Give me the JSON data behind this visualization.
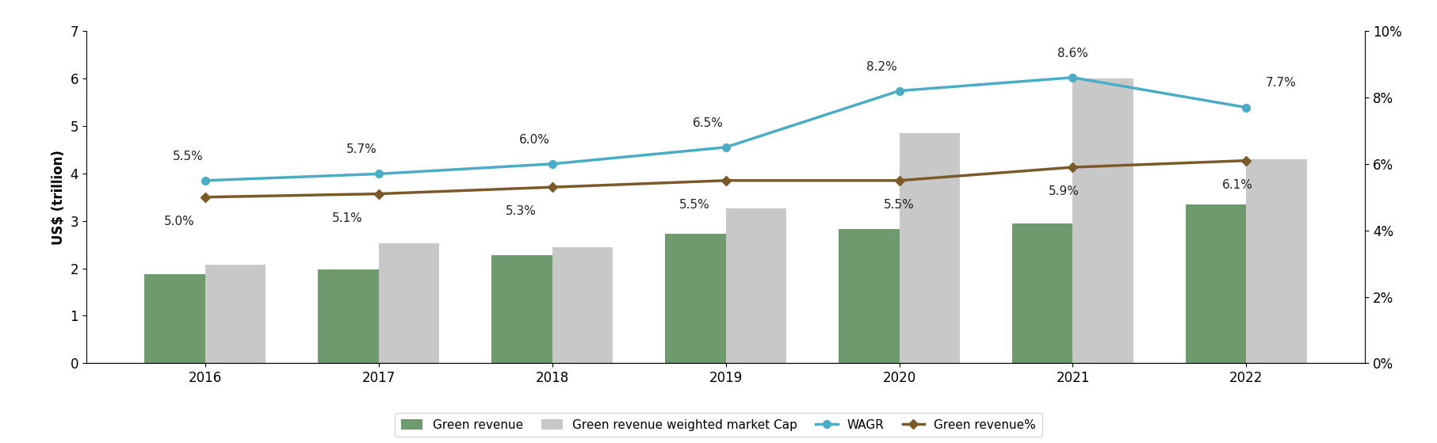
{
  "years": [
    2016,
    2017,
    2018,
    2019,
    2020,
    2021,
    2022
  ],
  "green_revenue": [
    1.87,
    1.97,
    2.28,
    2.72,
    2.82,
    2.95,
    3.35
  ],
  "green_rev_weighted_mktcap": [
    2.07,
    2.52,
    2.45,
    3.27,
    4.85,
    6.0,
    4.3
  ],
  "wagr_pct": [
    5.5,
    5.7,
    6.0,
    6.5,
    8.2,
    8.6,
    7.7
  ],
  "green_pct": [
    5.0,
    5.1,
    5.3,
    5.5,
    5.5,
    5.9,
    6.1
  ],
  "wagr_labels": [
    "5.5%",
    "5.7%",
    "6.0%",
    "6.5%",
    "8.2%",
    "8.6%",
    "7.7%"
  ],
  "green_rev_pct_labels": [
    "5.0%",
    "5.1%",
    "5.3%",
    "5.5%",
    "5.5%",
    "5.9%",
    "6.1%"
  ],
  "green_revenue_color": "#6e9a6e",
  "mktcap_color": "#c8c8c8",
  "wagr_color": "#4bacc6",
  "green_pct_color": "#7b5a2a",
  "ylabel_left": "US$ (trillion)",
  "ylim_left": [
    0,
    7
  ],
  "ylim_right": [
    0,
    10
  ],
  "yticks_left": [
    0,
    1,
    2,
    3,
    4,
    5,
    6,
    7
  ],
  "yticks_right": [
    0,
    2,
    4,
    6,
    8,
    10
  ],
  "legend_labels": [
    "Green revenue",
    "Green revenue weighted market Cap",
    "WAGR",
    "Green revenue%"
  ],
  "bar_width": 0.35
}
